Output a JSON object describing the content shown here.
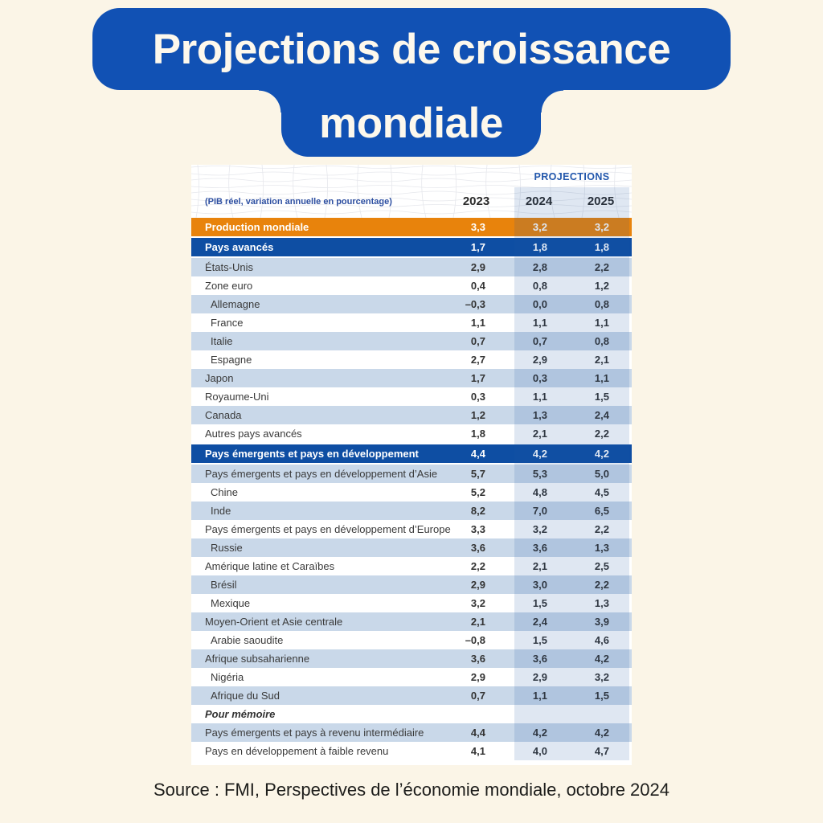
{
  "title": {
    "line1": "Projections de croissance",
    "line2": "mondiale"
  },
  "source": "Source : FMI, Perspectives de l’économie mondiale, octobre 2024",
  "colors": {
    "background_cream": "#fbf5e7",
    "banner_blue": "#1151b4",
    "banner_text": "#fdf8ec",
    "row_alt_blue": "#c9d8e9",
    "section_blue": "#0e4ea3",
    "world_orange": "#e8830c",
    "projections_band": "rgba(27,88,166,0.14)",
    "header_label_blue": "#2d4fa1"
  },
  "chart_data": {
    "type": "table",
    "title": "Projections de croissance mondiale",
    "subtitle": "(PIB réel, variation annuelle en pourcentage)",
    "projections_label": "PROJECTIONS",
    "columns": [
      "2023",
      "2024",
      "2025"
    ],
    "source": "Source : FMI, Perspectives de l’économie mondiale, octobre 2024",
    "rows": [
      {
        "label": "Production mondiale",
        "values": [
          "3,3",
          "3,2",
          "3,2"
        ],
        "style": "world"
      },
      {
        "label": "Pays avancés",
        "values": [
          "1,7",
          "1,8",
          "1,8"
        ],
        "style": "section"
      },
      {
        "label": "États-Unis",
        "values": [
          "2,9",
          "2,8",
          "2,2"
        ],
        "style": "alt"
      },
      {
        "label": "Zone euro",
        "values": [
          "0,4",
          "0,8",
          "1,2"
        ],
        "style": "plain"
      },
      {
        "label": "Allemagne",
        "values": [
          "–0,3",
          "0,0",
          "0,8"
        ],
        "style": "alt",
        "indent": true
      },
      {
        "label": "France",
        "values": [
          "1,1",
          "1,1",
          "1,1"
        ],
        "style": "plain",
        "indent": true
      },
      {
        "label": "Italie",
        "values": [
          "0,7",
          "0,7",
          "0,8"
        ],
        "style": "alt",
        "indent": true
      },
      {
        "label": "Espagne",
        "values": [
          "2,7",
          "2,9",
          "2,1"
        ],
        "style": "plain",
        "indent": true
      },
      {
        "label": "Japon",
        "values": [
          "1,7",
          "0,3",
          "1,1"
        ],
        "style": "alt"
      },
      {
        "label": "Royaume-Uni",
        "values": [
          "0,3",
          "1,1",
          "1,5"
        ],
        "style": "plain"
      },
      {
        "label": "Canada",
        "values": [
          "1,2",
          "1,3",
          "2,4"
        ],
        "style": "alt"
      },
      {
        "label": "Autres pays avancés",
        "values": [
          "1,8",
          "2,1",
          "2,2"
        ],
        "style": "plain"
      },
      {
        "label": "Pays émergents et pays en développement",
        "values": [
          "4,4",
          "4,2",
          "4,2"
        ],
        "style": "section"
      },
      {
        "label": "Pays émergents et pays en développement d’Asie",
        "values": [
          "5,7",
          "5,3",
          "5,0"
        ],
        "style": "alt"
      },
      {
        "label": "Chine",
        "values": [
          "5,2",
          "4,8",
          "4,5"
        ],
        "style": "plain",
        "indent": true
      },
      {
        "label": "Inde",
        "values": [
          "8,2",
          "7,0",
          "6,5"
        ],
        "style": "alt",
        "indent": true
      },
      {
        "label": "Pays émergents et pays en développement d’Europe",
        "values": [
          "3,3",
          "3,2",
          "2,2"
        ],
        "style": "plain"
      },
      {
        "label": "Russie",
        "values": [
          "3,6",
          "3,6",
          "1,3"
        ],
        "style": "alt",
        "indent": true
      },
      {
        "label": "Amérique latine et Caraïbes",
        "values": [
          "2,2",
          "2,1",
          "2,5"
        ],
        "style": "plain"
      },
      {
        "label": "Brésil",
        "values": [
          "2,9",
          "3,0",
          "2,2"
        ],
        "style": "alt",
        "indent": true
      },
      {
        "label": "Mexique",
        "values": [
          "3,2",
          "1,5",
          "1,3"
        ],
        "style": "plain",
        "indent": true
      },
      {
        "label": "Moyen-Orient et Asie centrale",
        "values": [
          "2,1",
          "2,4",
          "3,9"
        ],
        "style": "alt"
      },
      {
        "label": "Arabie saoudite",
        "values": [
          "–0,8",
          "1,5",
          "4,6"
        ],
        "style": "plain",
        "indent": true
      },
      {
        "label": "Afrique subsaharienne",
        "values": [
          "3,6",
          "3,6",
          "4,2"
        ],
        "style": "alt"
      },
      {
        "label": "Nigéria",
        "values": [
          "2,9",
          "2,9",
          "3,2"
        ],
        "style": "plain",
        "indent": true
      },
      {
        "label": "Afrique du Sud",
        "values": [
          "0,7",
          "1,1",
          "1,5"
        ],
        "style": "alt",
        "indent": true
      },
      {
        "label": "Pour mémoire",
        "values": [
          "",
          "",
          ""
        ],
        "style": "memo"
      },
      {
        "label": "Pays émergents et pays à revenu intermédiaire",
        "values": [
          "4,4",
          "4,2",
          "4,2"
        ],
        "style": "alt"
      },
      {
        "label": "Pays en développement à faible revenu",
        "values": [
          "4,1",
          "4,0",
          "4,7"
        ],
        "style": "plain"
      }
    ]
  }
}
